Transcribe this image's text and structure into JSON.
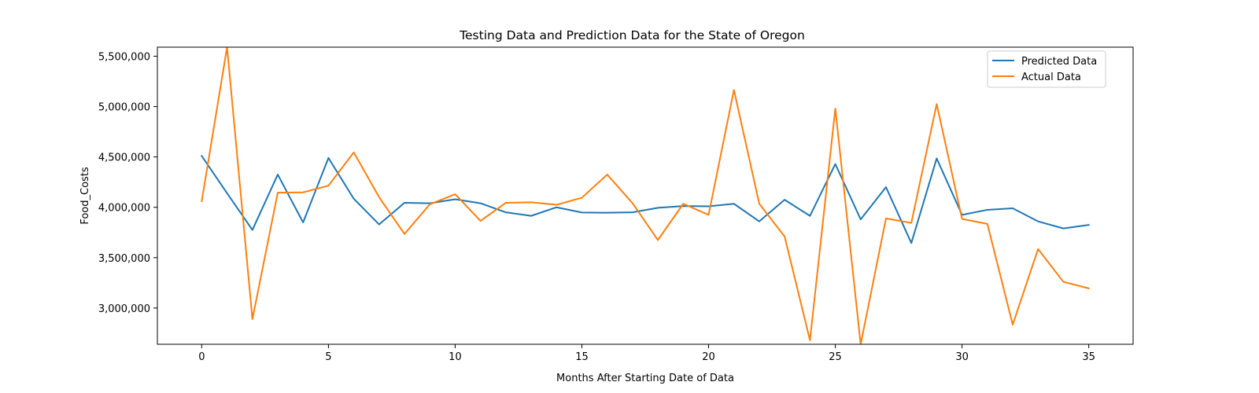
{
  "chart_data": {
    "type": "line",
    "title": "Testing Data and Prediction Data for the State of Oregon",
    "xlabel": "Months After Starting Date of Data",
    "ylabel": "Food_Costs",
    "xlim": [
      -1.75,
      36.75
    ],
    "ylim": [
      2640000,
      5590000
    ],
    "xticks": [
      0,
      5,
      10,
      15,
      20,
      25,
      30,
      35
    ],
    "xtick_labels": [
      "0",
      "5",
      "10",
      "15",
      "20",
      "25",
      "30",
      "35"
    ],
    "yticks": [
      3000000,
      3500000,
      4000000,
      4500000,
      5000000,
      5500000
    ],
    "ytick_labels": [
      "3,000,000",
      "3,500,000",
      "4,000,000",
      "4,500,000",
      "5,000,000",
      "5,500,000"
    ],
    "grid": false,
    "legend_position": "top-right",
    "x": [
      0,
      1,
      2,
      3,
      4,
      5,
      6,
      7,
      8,
      9,
      10,
      11,
      12,
      13,
      14,
      15,
      16,
      17,
      18,
      19,
      20,
      21,
      22,
      23,
      24,
      25,
      26,
      27,
      28,
      29,
      30,
      31,
      32,
      33,
      34,
      35
    ],
    "series": [
      {
        "name": "Predicted Data",
        "color": "#1f77b4",
        "values": [
          4510000,
          4140000,
          3775000,
          4325000,
          3850000,
          4490000,
          4085000,
          3830000,
          4045000,
          4040000,
          4080000,
          4040000,
          3950000,
          3915000,
          4000000,
          3948000,
          3946000,
          3950000,
          3995000,
          4013000,
          4010000,
          4035000,
          3860000,
          4075000,
          3915000,
          4430000,
          3880000,
          4200000,
          3645000,
          4485000,
          3925000,
          3975000,
          3990000,
          3860000,
          3790000,
          3825000
        ]
      },
      {
        "name": "Actual Data",
        "color": "#ff7f0e",
        "values": [
          4060000,
          5590000,
          2890000,
          4145000,
          4148000,
          4215000,
          4545000,
          4100000,
          3735000,
          4030000,
          4130000,
          3865000,
          4045000,
          4050000,
          4025000,
          4095000,
          4325000,
          4040000,
          3675000,
          4035000,
          3925000,
          5165000,
          4035000,
          3710000,
          2680000,
          4980000,
          2640000,
          3890000,
          3845000,
          5025000,
          3885000,
          3835000,
          2835000,
          3585000,
          3260000,
          3195000
        ]
      }
    ]
  }
}
